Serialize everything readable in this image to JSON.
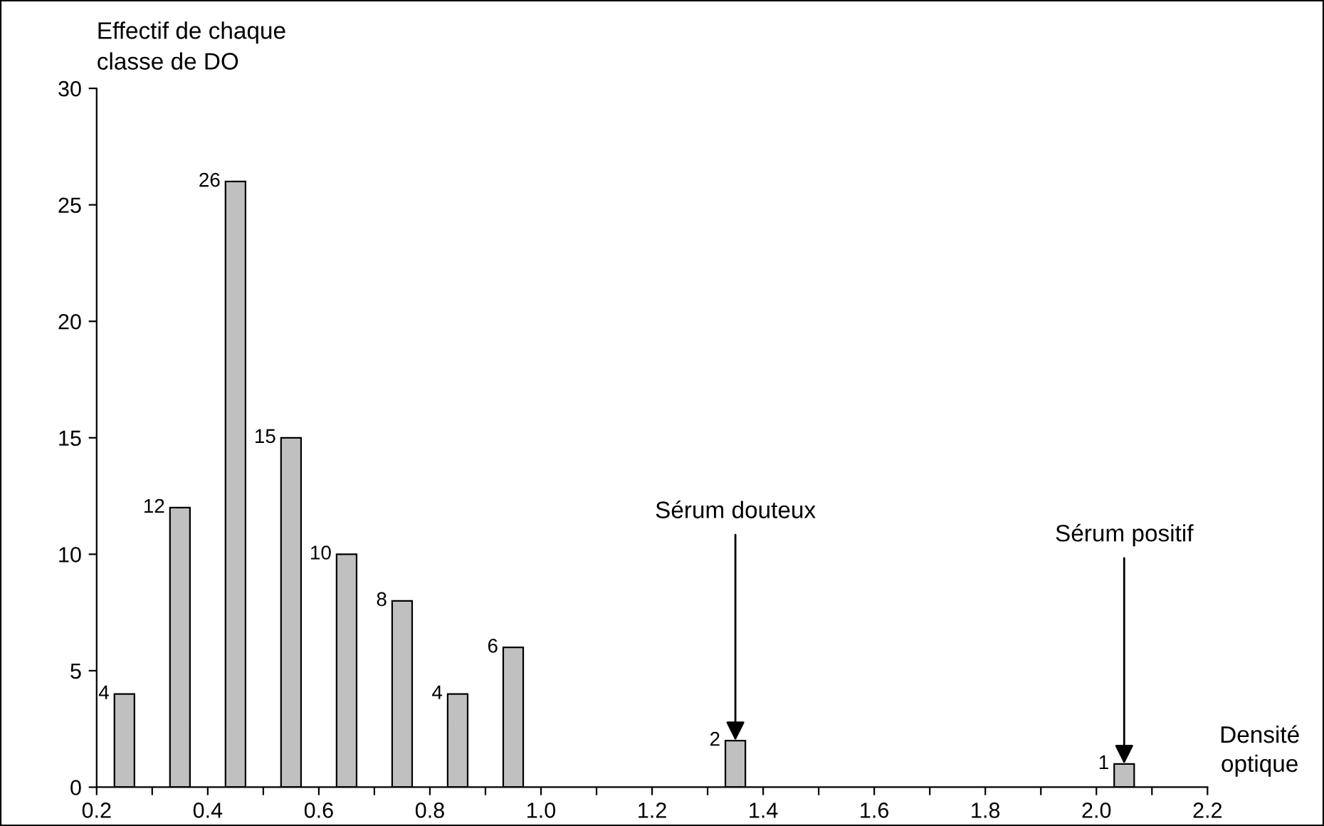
{
  "chart_data": {
    "type": "bar",
    "ylabel": "Effectif de chaque\nclasse de DO",
    "xlabel": "Densité\noptique",
    "x": [
      0.25,
      0.35,
      0.45,
      0.55,
      0.65,
      0.75,
      0.85,
      0.95,
      1.35,
      2.05
    ],
    "values": [
      4,
      12,
      26,
      15,
      10,
      8,
      4,
      6,
      2,
      1
    ],
    "color": "#c0c0c0",
    "data_labels": true,
    "xlim": [
      0.2,
      2.2
    ],
    "xticks": [
      0.2,
      {
        "value": 0.3,
        "label": null
      },
      0.4,
      {
        "value": 0.5,
        "label": null
      },
      0.6,
      {
        "value": 0.7,
        "label": null
      },
      0.8,
      {
        "value": 0.9,
        "label": null
      },
      {
        "value": 1.0,
        "label": "1.0"
      },
      {
        "value": 1.1,
        "label": null
      },
      1.2,
      {
        "value": 1.3,
        "label": null
      },
      1.4,
      {
        "value": 1.5,
        "label": null
      },
      1.6,
      {
        "value": 1.7,
        "label": null
      },
      1.8,
      {
        "value": 1.9,
        "label": null
      },
      {
        "value": 2.0,
        "label": "2.0"
      },
      {
        "value": 2.1,
        "label": null
      },
      2.2
    ],
    "ylim": [
      0,
      30
    ],
    "yticks": [
      0,
      5,
      10,
      15,
      20,
      25,
      30
    ],
    "grid": false,
    "legend": false,
    "annotations": [
      {
        "text": "Sérum douteux",
        "x": 1.35,
        "y": 2
      },
      {
        "text": "Sérum positif",
        "x": 2.05,
        "y": 1
      }
    ]
  }
}
